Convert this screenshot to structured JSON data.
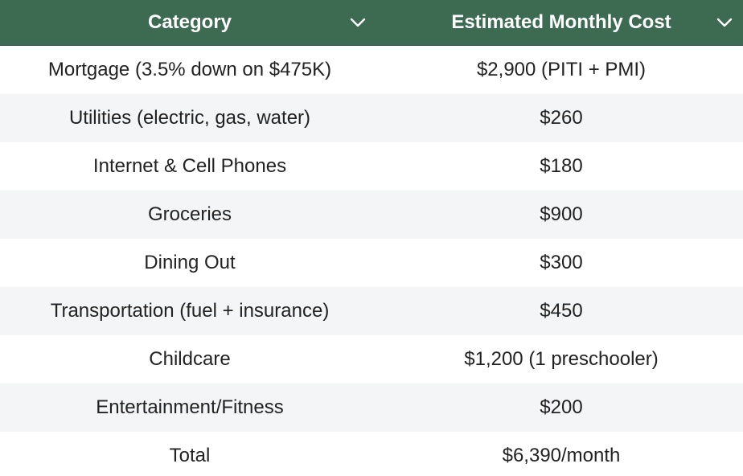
{
  "columns": [
    {
      "label": "Category",
      "icon": "chevron-down-icon"
    },
    {
      "label": "Estimated Monthly Cost",
      "icon": "chevron-down-icon"
    }
  ],
  "rows": [
    {
      "category": "Mortgage (3.5% down on $475K)",
      "cost": "$2,900 (PITI + PMI)"
    },
    {
      "category": "Utilities (electric, gas, water)",
      "cost": "$260"
    },
    {
      "category": "Internet & Cell Phones",
      "cost": "$180"
    },
    {
      "category": "Groceries",
      "cost": "$900"
    },
    {
      "category": "Dining Out",
      "cost": "$300"
    },
    {
      "category": "Transportation (fuel + insurance)",
      "cost": "$450"
    },
    {
      "category": "Childcare",
      "cost": "$1,200 (1 preschooler)"
    },
    {
      "category": "Entertainment/Fitness",
      "cost": "$200"
    },
    {
      "category": "Total",
      "cost": "$6,390/month"
    }
  ],
  "colors": {
    "header_bg": "#3d6b52",
    "header_text": "#ffffff",
    "row_alt_bg": "#f4f5f6",
    "text": "#222222"
  }
}
